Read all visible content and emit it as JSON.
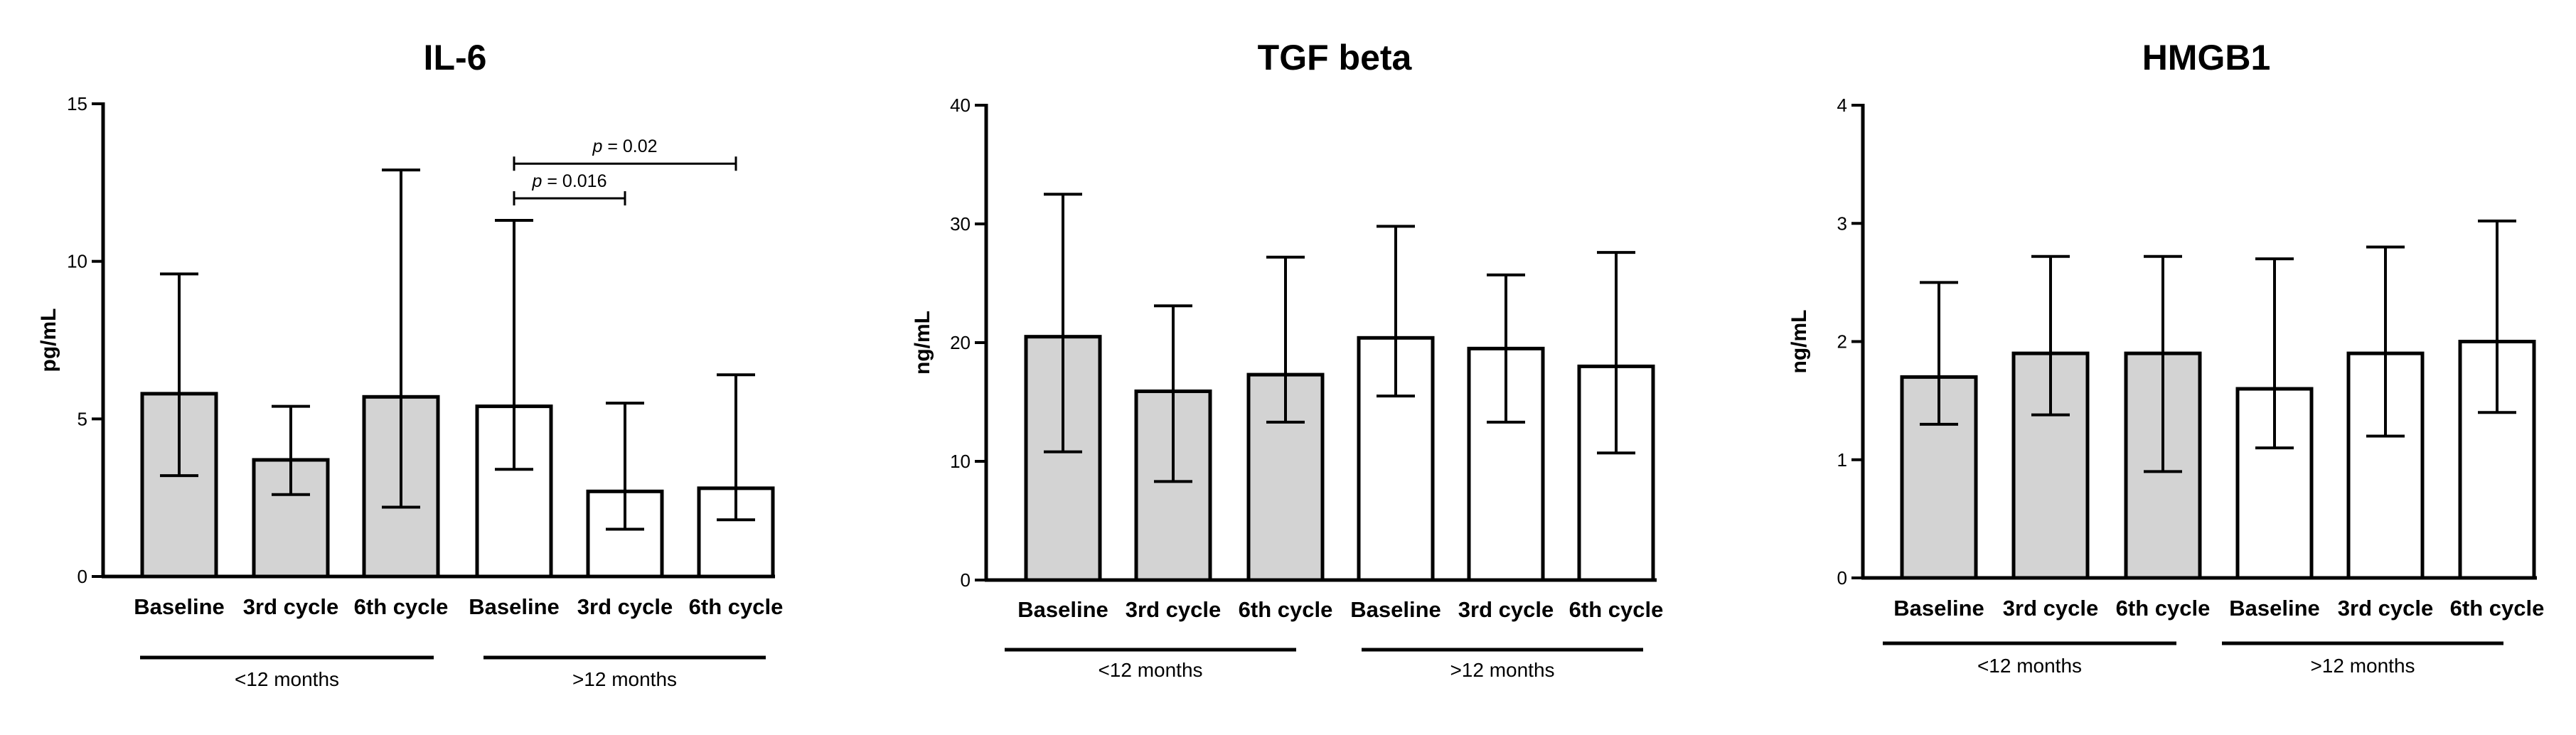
{
  "chart_data": [
    {
      "type": "bar",
      "title": "IL-6",
      "ylabel": "pg/mL",
      "xlabel": "",
      "ylim": [
        0,
        15
      ],
      "yticks": [
        0,
        5,
        10,
        15
      ],
      "categories": [
        "Baseline",
        "3rd cycle",
        "6th cycle",
        "Baseline",
        "3rd cycle",
        "6th cycle"
      ],
      "values": [
        5.8,
        3.7,
        5.7,
        5.4,
        2.7,
        2.8
      ],
      "error_high": [
        9.6,
        5.4,
        12.9,
        11.3,
        5.5,
        6.4
      ],
      "error_low": [
        3.2,
        2.6,
        2.2,
        3.4,
        1.5,
        1.8
      ],
      "fill_colors": [
        "#d3d3d3",
        "#d3d3d3",
        "#d3d3d3",
        "#ffffff",
        "#ffffff",
        "#ffffff"
      ],
      "groups": [
        {
          "label": "<12 months",
          "from": 0,
          "to": 2
        },
        {
          "label": ">12 months",
          "from": 3,
          "to": 5
        }
      ],
      "significance": [
        {
          "p_label": "p",
          "p_value": " = 0.016",
          "from": 3,
          "to": 4,
          "level": 12.0
        },
        {
          "p_label": "p",
          "p_value": " = 0.02",
          "from": 3,
          "to": 5,
          "level": 13.1
        }
      ]
    },
    {
      "type": "bar",
      "title": "TGF beta",
      "ylabel": "ng/mL",
      "xlabel": "",
      "ylim": [
        0,
        40
      ],
      "yticks": [
        0,
        10,
        20,
        30,
        40
      ],
      "categories": [
        "Baseline",
        "3rd cycle",
        "6th cycle",
        "Baseline",
        "3rd cycle",
        "6th cycle"
      ],
      "values": [
        20.5,
        15.9,
        17.3,
        20.4,
        19.5,
        18.0
      ],
      "error_high": [
        32.5,
        23.1,
        27.2,
        29.8,
        25.7,
        27.6
      ],
      "error_low": [
        10.8,
        8.3,
        13.3,
        15.5,
        13.3,
        10.7
      ],
      "fill_colors": [
        "#d3d3d3",
        "#d3d3d3",
        "#d3d3d3",
        "#ffffff",
        "#ffffff",
        "#ffffff"
      ],
      "groups": [
        {
          "label": "<12 months",
          "from": 0,
          "to": 2
        },
        {
          "label": ">12 months",
          "from": 3,
          "to": 5
        }
      ],
      "significance": []
    },
    {
      "type": "bar",
      "title": "HMGB1",
      "ylabel": "ng/mL",
      "xlabel": "",
      "ylim": [
        0,
        4
      ],
      "yticks": [
        0,
        1,
        2,
        3,
        4
      ],
      "categories": [
        "Baseline",
        "3rd cycle",
        "6th cycle",
        "Baseline",
        "3rd cycle",
        "6th cycle"
      ],
      "values": [
        1.7,
        1.9,
        1.9,
        1.6,
        1.9,
        2.0
      ],
      "error_high": [
        2.5,
        2.72,
        2.72,
        2.7,
        2.8,
        3.02
      ],
      "error_low": [
        1.3,
        1.38,
        0.9,
        1.1,
        1.2,
        1.4
      ],
      "fill_colors": [
        "#d3d3d3",
        "#d3d3d3",
        "#d3d3d3",
        "#ffffff",
        "#ffffff",
        "#ffffff"
      ],
      "groups": [
        {
          "label": "<12 months",
          "from": 0,
          "to": 2
        },
        {
          "label": ">12 months",
          "from": 3,
          "to": 5
        }
      ],
      "significance": []
    }
  ]
}
